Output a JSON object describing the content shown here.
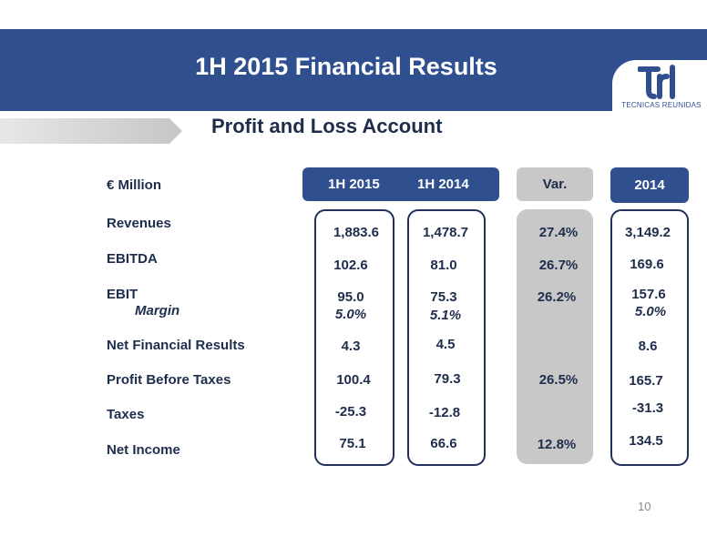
{
  "header": {
    "title": "1H 2015 Financial Results",
    "subtitle": "Profit and Loss Account",
    "logo_text": "TECNICAS REUNIDAS",
    "band_color": "#2f4f8f"
  },
  "table": {
    "unit_label": "€ Million",
    "columns": [
      "1H 2015",
      "1H 2014",
      "Var.",
      "2014"
    ],
    "rows": {
      "revenues": {
        "label": "Revenues",
        "h1_2015": "1,883.6",
        "h1_2014": "1,478.7",
        "var": "27.4%",
        "fy2014": "3,149.2"
      },
      "ebitda": {
        "label": "EBITDA",
        "h1_2015": "102.6",
        "h1_2014": "81.0",
        "var": "26.7%",
        "fy2014": "169.6"
      },
      "ebit": {
        "label": "EBIT",
        "h1_2015": "95.0",
        "h1_2014": "75.3",
        "var": "26.2%",
        "fy2014": "157.6"
      },
      "margin": {
        "label": "Margin",
        "h1_2015": "5.0%",
        "h1_2014": "5.1%",
        "var": "",
        "fy2014": "5.0%"
      },
      "net_financial": {
        "label": "Net Financial Results",
        "h1_2015": "4.3",
        "h1_2014": "4.5",
        "var": "",
        "fy2014": "8.6"
      },
      "profit_before": {
        "label": "Profit Before Taxes",
        "h1_2015": "100.4",
        "h1_2014": "79.3",
        "var": "26.5%",
        "fy2014": "165.7"
      },
      "taxes": {
        "label": "Taxes",
        "h1_2015": "-25.3",
        "h1_2014": "-12.8",
        "var": "",
        "fy2014": "-31.3"
      },
      "net_income": {
        "label": "Net Income",
        "h1_2015": "75.1",
        "h1_2014": "66.6",
        "var": "12.8%",
        "fy2014": "134.5"
      }
    }
  },
  "footer": {
    "page_number": "10"
  }
}
